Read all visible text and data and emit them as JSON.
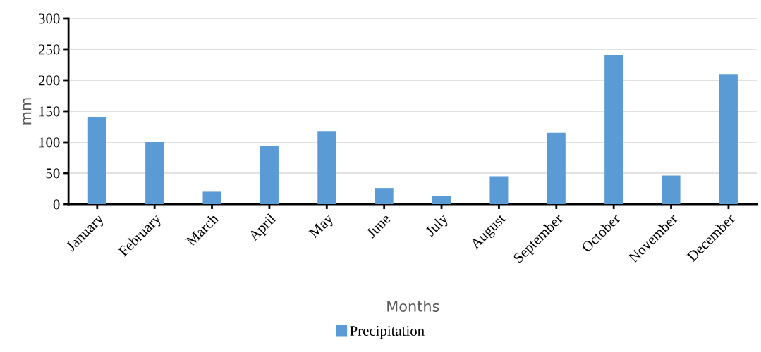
{
  "chart_data": {
    "type": "bar",
    "xlabel": "Months",
    "ylabel": "mm",
    "categories": [
      "January",
      "February",
      "March",
      "April",
      "May",
      "June",
      "July",
      "August",
      "September",
      "October",
      "November",
      "December"
    ],
    "series": [
      {
        "name": "Precipitation",
        "color": "#5b9bd5",
        "values": [
          141,
          100,
          20,
          94,
          118,
          26,
          13,
          45,
          115,
          241,
          46,
          210
        ]
      }
    ],
    "ylim": [
      0,
      300
    ],
    "yticks": [
      0,
      50,
      100,
      150,
      200,
      250,
      300
    ],
    "grid": "y",
    "legend": "bottom"
  }
}
